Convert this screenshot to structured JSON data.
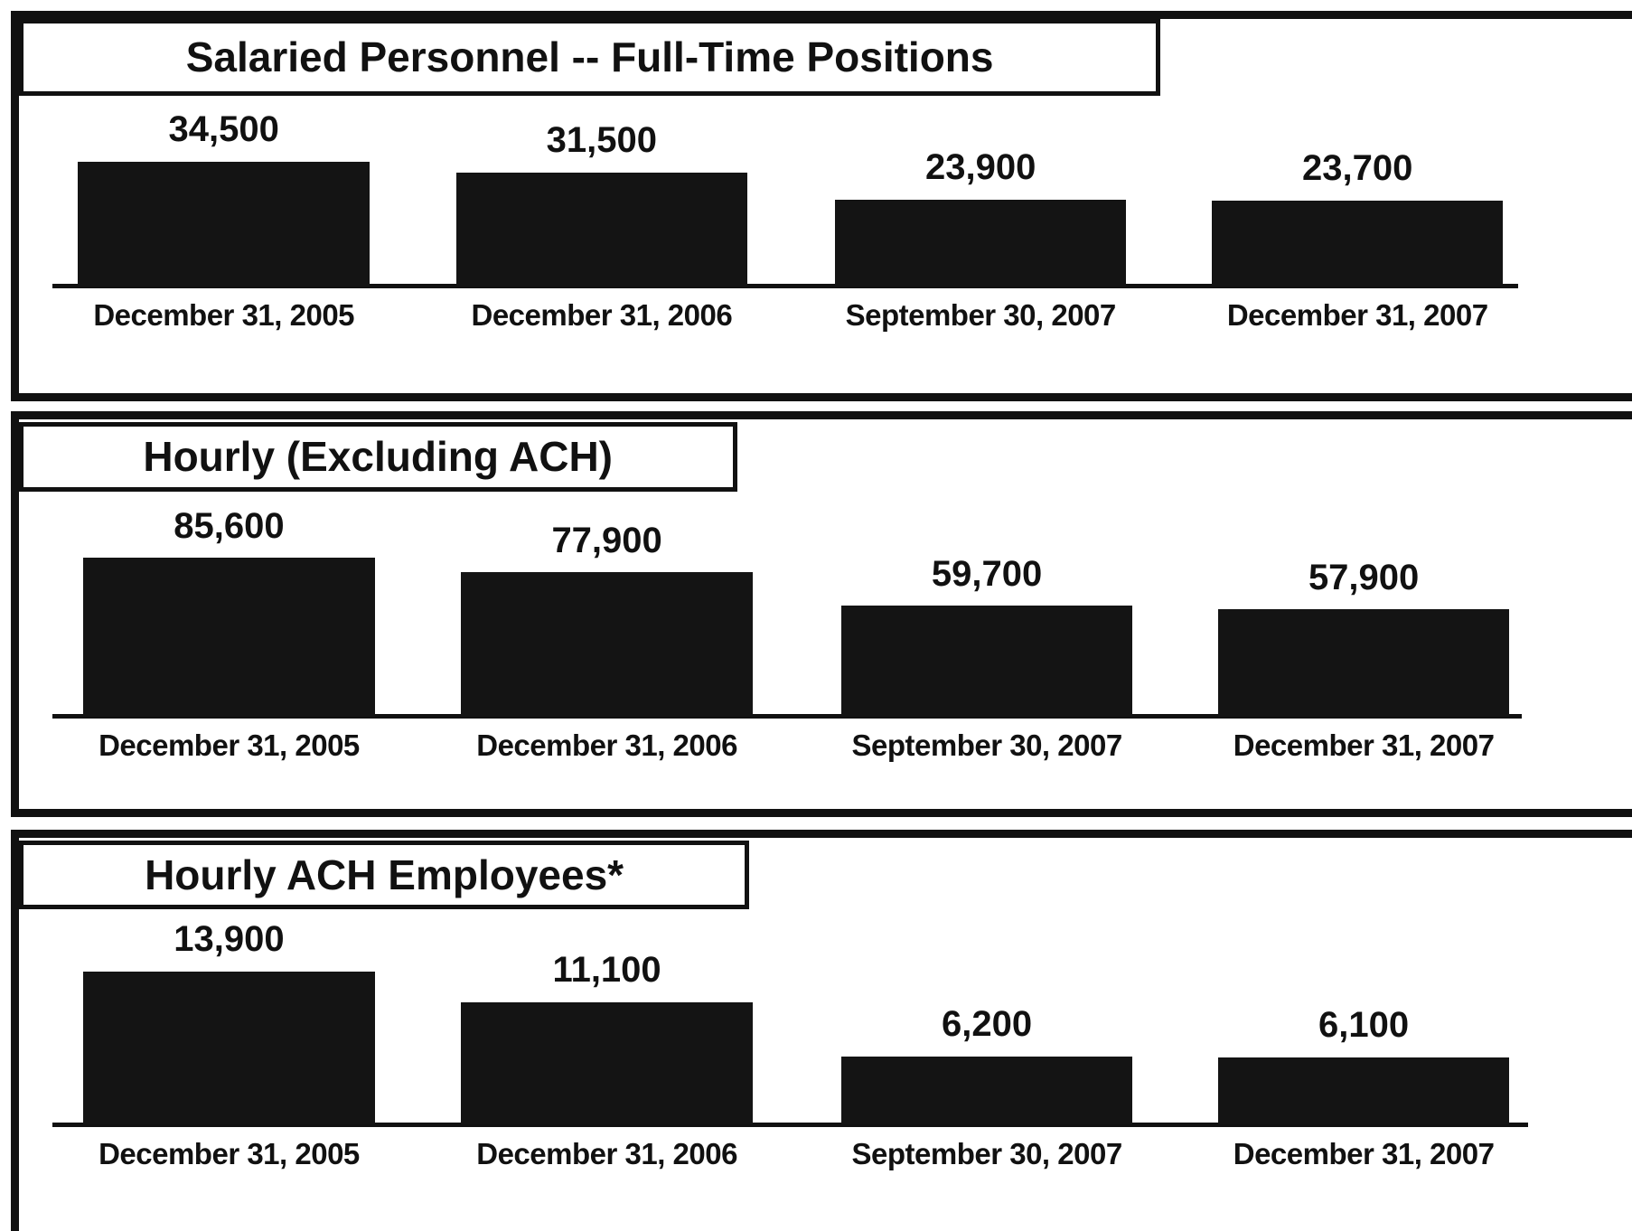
{
  "chart_data": [
    {
      "type": "bar",
      "title": "Salaried Personnel -- Full-Time Positions",
      "categories": [
        "December 31, 2005",
        "December 31, 2006",
        "September 30, 2007",
        "December 31, 2007"
      ],
      "values": [
        34500,
        31500,
        23900,
        23700
      ],
      "value_labels": [
        "34,500",
        "31,500",
        "23,900",
        "23,700"
      ],
      "color": "#141414"
    },
    {
      "type": "bar",
      "title": "Hourly (Excluding ACH)",
      "categories": [
        "December 31, 2005",
        "December 31, 2006",
        "September 30, 2007",
        "December 31, 2007"
      ],
      "values": [
        85600,
        77900,
        59700,
        57900
      ],
      "value_labels": [
        "85,600",
        "77,900",
        "59,700",
        "57,900"
      ],
      "color": "#141414"
    },
    {
      "type": "bar",
      "title": "Hourly ACH Employees*",
      "categories": [
        "December 31, 2005",
        "December 31, 2006",
        "September 30, 2007",
        "December 31, 2007"
      ],
      "values": [
        13900,
        11100,
        6200,
        6100
      ],
      "value_labels": [
        "13,900",
        "11,100",
        "6,200",
        "6,100"
      ],
      "color": "#141414"
    }
  ]
}
